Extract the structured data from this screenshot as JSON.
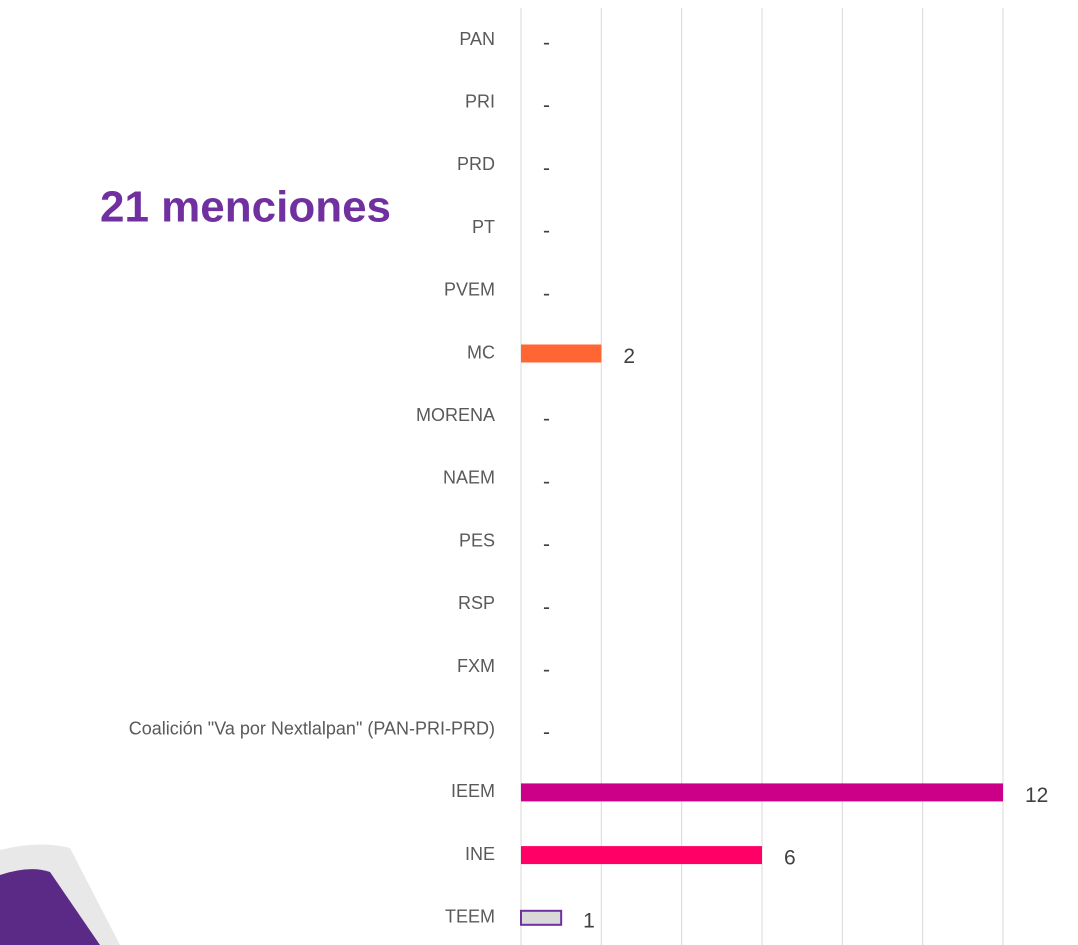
{
  "chart_data": {
    "type": "bar",
    "orientation": "horizontal",
    "title": "21 menciones",
    "categories": [
      "PAN",
      "PRI",
      "PRD",
      "PT",
      "PVEM",
      "MC",
      "MORENA",
      "NAEM",
      "PES",
      "RSP",
      "FXM",
      "Coalición \"Va por Nextlalpan\" (PAN-PRI-PRD)",
      "IEEM",
      "INE",
      "TEEM"
    ],
    "values": [
      0,
      0,
      0,
      0,
      0,
      2,
      0,
      0,
      0,
      0,
      0,
      0,
      12,
      6,
      1
    ],
    "value_labels": [
      "-",
      "-",
      "-",
      "-",
      "-",
      "2",
      "-",
      "-",
      "-",
      "-",
      "-",
      "-",
      "12",
      "6",
      "1"
    ],
    "colors": [
      null,
      null,
      null,
      null,
      null,
      "#ff6633",
      null,
      null,
      null,
      null,
      null,
      null,
      "#cc0088",
      "#ff0066",
      "#d9d9d9"
    ],
    "edgecolors": [
      null,
      null,
      null,
      null,
      null,
      null,
      null,
      null,
      null,
      null,
      null,
      null,
      null,
      null,
      "#7030a0"
    ],
    "xlim": [
      0,
      12
    ],
    "xticks": [
      0,
      2,
      4,
      6,
      8,
      10,
      12
    ],
    "grid": true,
    "title_color": "#7030a0"
  }
}
